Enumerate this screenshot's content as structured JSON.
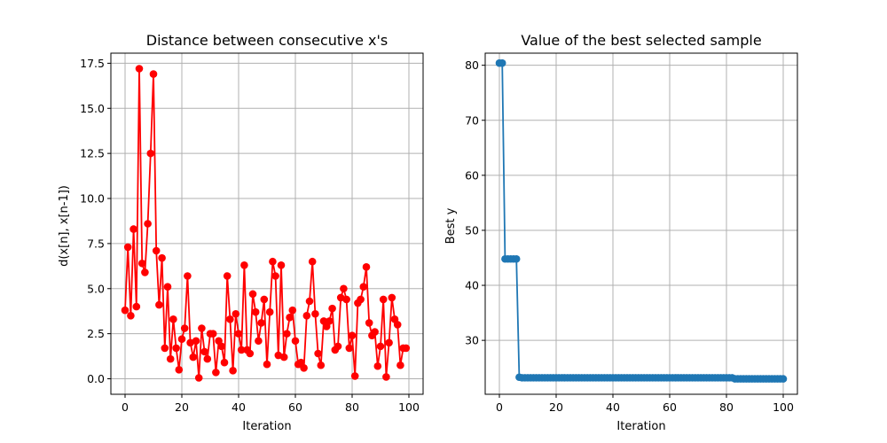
{
  "chart_data": [
    {
      "type": "line",
      "title": "Distance between consecutive x's",
      "xlabel": "Iteration",
      "ylabel": "d(x[n], x[n-1])",
      "xlim": [
        -5,
        105
      ],
      "ylim": [
        -0.86,
        18.06
      ],
      "xticks": [
        0,
        20,
        40,
        60,
        80,
        100
      ],
      "yticks": [
        0.0,
        2.5,
        5.0,
        7.5,
        10.0,
        12.5,
        15.0,
        17.5
      ],
      "xtick_labels": [
        "0",
        "20",
        "40",
        "60",
        "80",
        "100"
      ],
      "ytick_labels": [
        "0.0",
        "2.5",
        "5.0",
        "7.5",
        "10.0",
        "12.5",
        "15.0",
        "17.5"
      ],
      "grid": true,
      "series": [
        {
          "color": "#ff0000",
          "marker": "circle",
          "x": [
            0,
            1,
            2,
            3,
            4,
            5,
            6,
            7,
            8,
            9,
            10,
            11,
            12,
            13,
            14,
            15,
            16,
            17,
            18,
            19,
            20,
            21,
            22,
            23,
            24,
            25,
            26,
            27,
            28,
            29,
            30,
            31,
            32,
            33,
            34,
            35,
            36,
            37,
            38,
            39,
            40,
            41,
            42,
            43,
            44,
            45,
            46,
            47,
            48,
            49,
            50,
            51,
            52,
            53,
            54,
            55,
            56,
            57,
            58,
            59,
            60,
            61,
            62,
            63,
            64,
            65,
            66,
            67,
            68,
            69,
            70,
            71,
            72,
            73,
            74,
            75,
            76,
            77,
            78,
            79,
            80,
            81,
            82,
            83,
            84,
            85,
            86,
            87,
            88,
            89,
            90,
            91,
            92,
            93,
            94,
            95,
            96,
            97,
            98,
            99
          ],
          "values": [
            3.8,
            7.3,
            3.5,
            8.3,
            4.0,
            17.2,
            6.4,
            5.9,
            8.6,
            12.5,
            16.9,
            7.1,
            4.1,
            6.7,
            1.7,
            5.1,
            1.1,
            3.3,
            1.7,
            0.5,
            2.2,
            2.8,
            5.7,
            2.0,
            1.2,
            2.1,
            0.05,
            2.8,
            1.5,
            1.1,
            2.5,
            2.5,
            0.35,
            2.1,
            1.8,
            0.9,
            5.7,
            3.3,
            0.45,
            3.6,
            2.5,
            1.6,
            6.3,
            1.6,
            1.4,
            4.7,
            3.7,
            2.1,
            3.1,
            4.4,
            0.8,
            3.7,
            6.5,
            5.7,
            1.3,
            6.3,
            1.2,
            2.5,
            3.4,
            3.8,
            2.1,
            0.8,
            0.9,
            0.6,
            3.5,
            4.3,
            6.5,
            3.6,
            1.4,
            0.75,
            3.2,
            2.9,
            3.2,
            3.9,
            1.6,
            1.8,
            4.5,
            5.0,
            4.4,
            1.7,
            2.4,
            0.15,
            4.2,
            4.4,
            5.1,
            6.2,
            3.1,
            2.4,
            2.6,
            0.7,
            1.8,
            4.4,
            0.1,
            2.0,
            4.5,
            3.3,
            3.0,
            0.75,
            1.7,
            1.7
          ]
        }
      ]
    },
    {
      "type": "line",
      "title": "Value of the best selected sample",
      "xlabel": "Iteration",
      "ylabel": "Best y",
      "xlim": [
        -5,
        105
      ],
      "ylim": [
        20.2,
        82.2
      ],
      "xticks": [
        0,
        20,
        40,
        60,
        80,
        100
      ],
      "yticks": [
        30,
        40,
        50,
        60,
        70,
        80
      ],
      "xtick_labels": [
        "0",
        "20",
        "40",
        "60",
        "80",
        "100"
      ],
      "ytick_labels": [
        "30",
        "40",
        "50",
        "60",
        "70",
        "80"
      ],
      "grid": true,
      "series": [
        {
          "color": "#1f77b4",
          "marker": "circle",
          "x": [
            0,
            1,
            2,
            3,
            4,
            5,
            6,
            7,
            8,
            9,
            10,
            11,
            12,
            13,
            14,
            15,
            16,
            17,
            18,
            19,
            20,
            21,
            22,
            23,
            24,
            25,
            26,
            27,
            28,
            29,
            30,
            31,
            32,
            33,
            34,
            35,
            36,
            37,
            38,
            39,
            40,
            41,
            42,
            43,
            44,
            45,
            46,
            47,
            48,
            49,
            50,
            51,
            52,
            53,
            54,
            55,
            56,
            57,
            58,
            59,
            60,
            61,
            62,
            63,
            64,
            65,
            66,
            67,
            68,
            69,
            70,
            71,
            72,
            73,
            74,
            75,
            76,
            77,
            78,
            79,
            80,
            81,
            82,
            83,
            84,
            85,
            86,
            87,
            88,
            89,
            90,
            91,
            92,
            93,
            94,
            95,
            96,
            97,
            98,
            99,
            100
          ],
          "values": [
            80.4,
            80.4,
            44.8,
            44.8,
            44.8,
            44.8,
            44.8,
            23.3,
            23.2,
            23.2,
            23.2,
            23.2,
            23.2,
            23.2,
            23.2,
            23.2,
            23.2,
            23.2,
            23.2,
            23.2,
            23.2,
            23.2,
            23.2,
            23.2,
            23.2,
            23.2,
            23.2,
            23.2,
            23.2,
            23.2,
            23.2,
            23.2,
            23.2,
            23.2,
            23.2,
            23.2,
            23.2,
            23.2,
            23.2,
            23.2,
            23.2,
            23.2,
            23.2,
            23.2,
            23.2,
            23.2,
            23.2,
            23.2,
            23.2,
            23.2,
            23.2,
            23.2,
            23.2,
            23.2,
            23.2,
            23.2,
            23.2,
            23.2,
            23.2,
            23.2,
            23.2,
            23.2,
            23.2,
            23.2,
            23.2,
            23.2,
            23.2,
            23.2,
            23.2,
            23.2,
            23.2,
            23.2,
            23.2,
            23.2,
            23.2,
            23.2,
            23.2,
            23.2,
            23.2,
            23.2,
            23.2,
            23.2,
            23.2,
            23.0,
            23.0,
            23.0,
            23.0,
            23.0,
            23.0,
            23.0,
            23.0,
            23.0,
            23.0,
            23.0,
            23.0,
            23.0,
            23.0,
            23.0,
            23.0,
            23.0,
            23.0
          ]
        }
      ]
    }
  ]
}
